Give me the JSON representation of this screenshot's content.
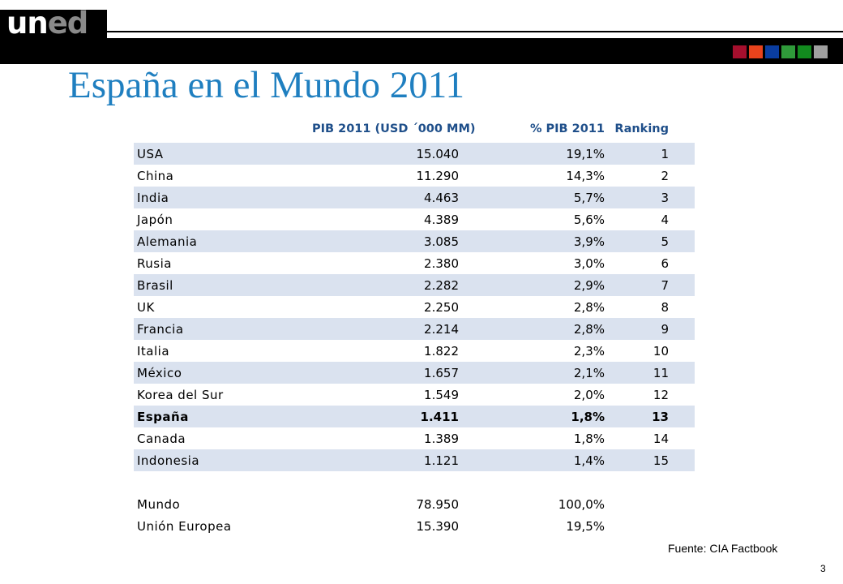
{
  "logo": {
    "part1": "un",
    "part2": "ed"
  },
  "squares": [
    {
      "name": "square-dark-red",
      "color": "#a50f2d"
    },
    {
      "name": "square-orange-red",
      "color": "#e8431c"
    },
    {
      "name": "square-blue",
      "color": "#0a3da0"
    },
    {
      "name": "square-green",
      "color": "#2f9a3a"
    },
    {
      "name": "square-dark-green",
      "color": "#128a1e"
    },
    {
      "name": "square-gray",
      "color": "#a0a0a0"
    }
  ],
  "title": "España en el Mundo 2011",
  "table": {
    "headers": [
      "",
      "PIB 2011 (USD ´000 MM)",
      "% PIB 2011",
      "Ranking"
    ],
    "rows": [
      {
        "country": "USA",
        "pib": "15.040",
        "pct": "19,1%",
        "rank": "1"
      },
      {
        "country": "China",
        "pib": "11.290",
        "pct": "14,3%",
        "rank": "2"
      },
      {
        "country": "India",
        "pib": "4.463",
        "pct": "5,7%",
        "rank": "3"
      },
      {
        "country": "Japón",
        "pib": "4.389",
        "pct": "5,6%",
        "rank": "4"
      },
      {
        "country": "Alemania",
        "pib": "3.085",
        "pct": "3,9%",
        "rank": "5"
      },
      {
        "country": "Rusia",
        "pib": "2.380",
        "pct": "3,0%",
        "rank": "6"
      },
      {
        "country": "Brasil",
        "pib": "2.282",
        "pct": "2,9%",
        "rank": "7"
      },
      {
        "country": "UK",
        "pib": "2.250",
        "pct": "2,8%",
        "rank": "8"
      },
      {
        "country": "Francia",
        "pib": "2.214",
        "pct": "2,8%",
        "rank": "9"
      },
      {
        "country": "Italia",
        "pib": "1.822",
        "pct": "2,3%",
        "rank": "10"
      },
      {
        "country": "México",
        "pib": "1.657",
        "pct": "2,1%",
        "rank": "11"
      },
      {
        "country": "Korea del Sur",
        "pib": "1.549",
        "pct": "2,0%",
        "rank": "12"
      },
      {
        "country": "España",
        "pib": "1.411",
        "pct": "1,8%",
        "rank": "13"
      },
      {
        "country": "Canada",
        "pib": "1.389",
        "pct": "1,8%",
        "rank": "14"
      },
      {
        "country": "Indonesia",
        "pib": "1.121",
        "pct": "1,4%",
        "rank": "15"
      }
    ],
    "totals": [
      {
        "country": "Mundo",
        "pib": "78.950",
        "pct": "100,0%",
        "rank": ""
      },
      {
        "country": "Unión Europea",
        "pib": "15.390",
        "pct": "19,5%",
        "rank": ""
      }
    ]
  },
  "source": "Fuente: CIA Factbook",
  "page_number": "3"
}
